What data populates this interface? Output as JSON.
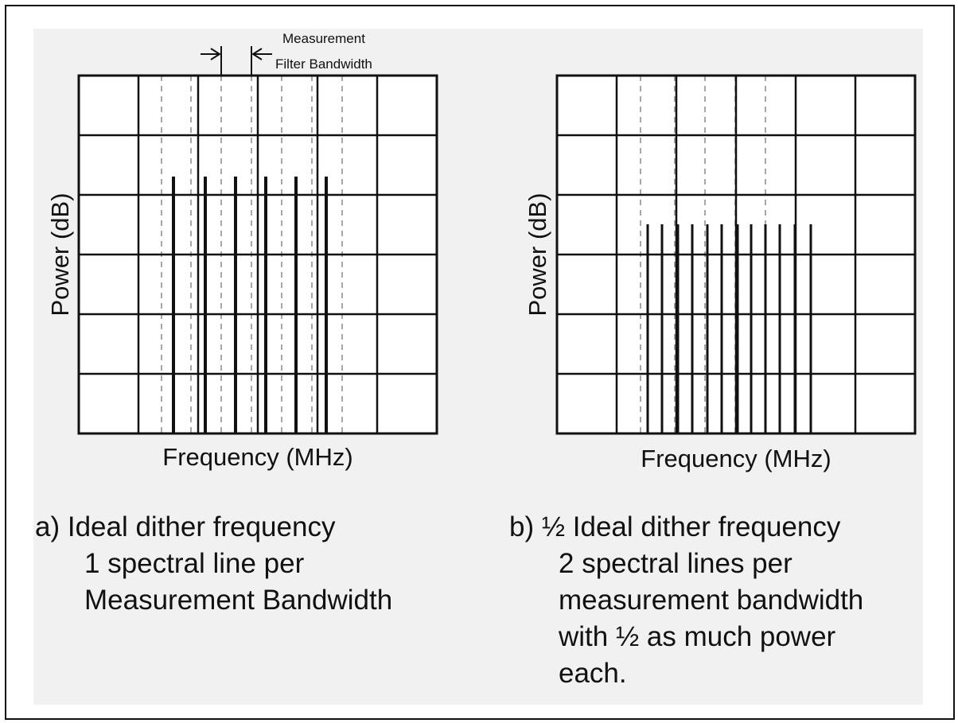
{
  "panel_a": {
    "ylabel": "Power (dB)",
    "xlabel": "Frequency (MHz)",
    "annotation_line1": "Measurement",
    "annotation_line2": "Filter Bandwidth",
    "caption_line1": "a) Ideal dither frequency",
    "caption_line2": "1 spectral line per",
    "caption_line3": "Measurement Bandwidth"
  },
  "panel_b": {
    "ylabel": "Power (dB)",
    "xlabel": "Frequency (MHz)",
    "caption_line1": "b) ½ Ideal dither frequency",
    "caption_line2": "2 spectral lines per",
    "caption_line3": "measurement bandwidth",
    "caption_line4": "with ½ as much power",
    "caption_line5": "each."
  },
  "colors": {
    "ink": "#111111",
    "dashed_grid": "#8a8a8a",
    "panel_background": "#f1f1f1",
    "plot_background": "#ffffff"
  }
}
